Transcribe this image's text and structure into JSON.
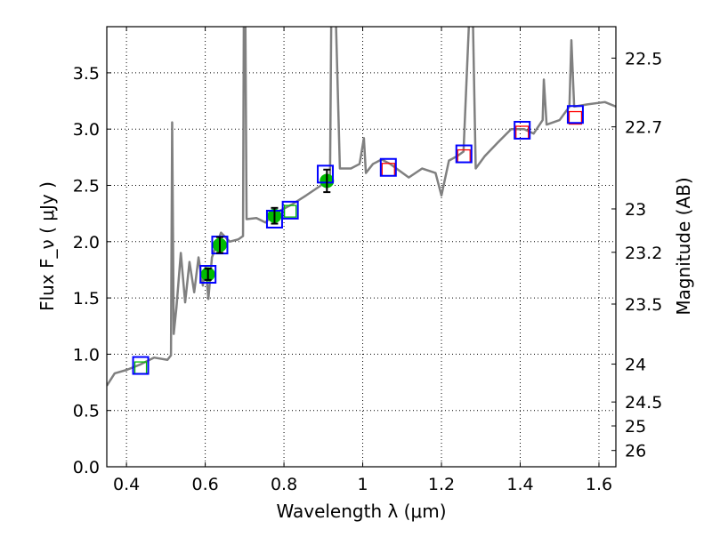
{
  "chart_data": {
    "type": "line",
    "xlabel": "Wavelength  λ (μm)",
    "ylabel": "Flux  F_ν  ( μJy )",
    "ylabel_right": "Magnitude (AB)",
    "xlim": [
      0.35,
      1.643
    ],
    "ylim": [
      0,
      3.91
    ],
    "grid": true,
    "x_ticks": [
      0.4,
      0.6,
      0.8,
      1.0,
      1.2,
      1.4,
      1.6
    ],
    "x_tick_labels": [
      "0.4",
      "0.6",
      "0.8",
      "1",
      "1.2",
      "1.4",
      "1.6"
    ],
    "y_ticks": [
      0,
      0.5,
      1,
      1.5,
      2,
      2.5,
      3,
      3.5
    ],
    "y_tick_labels": [
      "0.0",
      "0.5",
      "1.0",
      "1.5",
      "2.0",
      "2.5",
      "3.0",
      "3.5"
    ],
    "right_ticks_mag": [
      22.5,
      22.7,
      23,
      23.2,
      23.5,
      24,
      24.5,
      25,
      26
    ],
    "right_tick_labels": [
      "22.5",
      "22.7",
      "23",
      "23.2",
      "23.5",
      "24",
      "24.5",
      "25",
      "26"
    ],
    "colors": {
      "spectrum": "#808080",
      "model": "#0000ff",
      "phot": "#00bb00",
      "nir": "#ff0000"
    },
    "spectrum": [
      [
        0.35,
        0.72
      ],
      [
        0.37,
        0.83
      ],
      [
        0.4,
        0.86
      ],
      [
        0.436,
        0.91
      ],
      [
        0.47,
        0.97
      ],
      [
        0.504,
        0.95
      ],
      [
        0.513,
        0.99
      ],
      [
        0.516,
        3.06
      ],
      [
        0.52,
        1.18
      ],
      [
        0.527,
        1.42
      ],
      [
        0.538,
        1.9
      ],
      [
        0.549,
        1.46
      ],
      [
        0.56,
        1.82
      ],
      [
        0.572,
        1.55
      ],
      [
        0.583,
        1.86
      ],
      [
        0.594,
        1.61
      ],
      [
        0.601,
        1.78
      ],
      [
        0.608,
        1.49
      ],
      [
        0.617,
        1.86
      ],
      [
        0.64,
        2.08
      ],
      [
        0.662,
        2.0
      ],
      [
        0.684,
        2.02
      ],
      [
        0.696,
        2.05
      ],
      [
        0.698,
        3.95
      ],
      [
        0.702,
        3.95
      ],
      [
        0.705,
        2.2
      ],
      [
        0.73,
        2.21
      ],
      [
        0.753,
        2.17
      ],
      [
        0.776,
        2.25
      ],
      [
        0.82,
        2.33
      ],
      [
        0.856,
        2.41
      ],
      [
        0.89,
        2.49
      ],
      [
        0.917,
        2.57
      ],
      [
        0.92,
        3.95
      ],
      [
        0.932,
        3.95
      ],
      [
        0.942,
        2.65
      ],
      [
        0.97,
        2.65
      ],
      [
        0.992,
        2.69
      ],
      [
        1.003,
        2.92
      ],
      [
        1.008,
        2.61
      ],
      [
        1.026,
        2.69
      ],
      [
        1.048,
        2.73
      ],
      [
        1.07,
        2.69
      ],
      [
        1.117,
        2.57
      ],
      [
        1.151,
        2.65
      ],
      [
        1.185,
        2.61
      ],
      [
        1.2,
        2.41
      ],
      [
        1.219,
        2.72
      ],
      [
        1.24,
        2.76
      ],
      [
        1.256,
        2.8
      ],
      [
        1.27,
        3.95
      ],
      [
        1.28,
        3.95
      ],
      [
        1.287,
        2.65
      ],
      [
        1.31,
        2.76
      ],
      [
        1.343,
        2.88
      ],
      [
        1.377,
        3.0
      ],
      [
        1.41,
        3.0
      ],
      [
        1.434,
        2.96
      ],
      [
        1.457,
        3.08
      ],
      [
        1.46,
        3.44
      ],
      [
        1.467,
        3.04
      ],
      [
        1.5,
        3.08
      ],
      [
        1.525,
        3.2
      ],
      [
        1.53,
        3.79
      ],
      [
        1.537,
        3.2
      ],
      [
        1.571,
        3.22
      ],
      [
        1.615,
        3.24
      ],
      [
        1.643,
        3.2
      ]
    ],
    "photometry": [
      {
        "x": 0.607,
        "y": 1.71,
        "err": 0.05
      },
      {
        "x": 0.637,
        "y": 1.97,
        "err": 0.07
      },
      {
        "x": 0.776,
        "y": 2.23,
        "err": 0.07
      },
      {
        "x": 0.909,
        "y": 2.54,
        "err": 0.1
      }
    ],
    "model_points": [
      [
        0.436,
        0.9
      ],
      [
        0.607,
        1.71
      ],
      [
        0.637,
        1.97
      ],
      [
        0.776,
        2.2
      ],
      [
        0.816,
        2.28
      ],
      [
        0.905,
        2.6
      ],
      [
        1.065,
        2.66
      ],
      [
        1.257,
        2.78
      ],
      [
        1.405,
        2.99
      ],
      [
        1.54,
        3.13
      ]
    ],
    "synthetic_optical": [
      [
        0.436,
        0.88
      ],
      [
        0.816,
        2.27
      ]
    ],
    "synthetic_nir": [
      [
        1.065,
        2.64
      ],
      [
        1.257,
        2.76
      ],
      [
        1.405,
        2.97
      ],
      [
        1.54,
        3.1
      ]
    ]
  }
}
